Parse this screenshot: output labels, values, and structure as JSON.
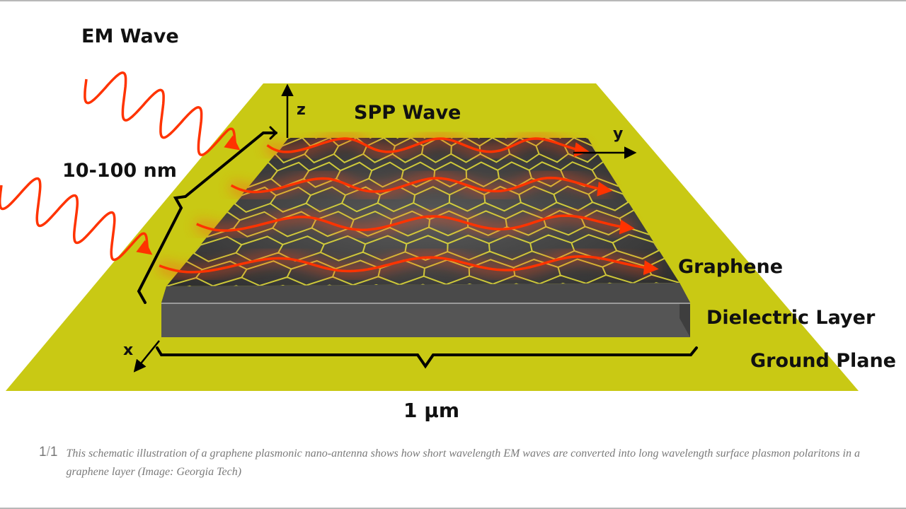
{
  "diagram": {
    "labels": {
      "em_wave": "EM Wave",
      "spp_wave": "SPP Wave",
      "thickness": "10-100 nm",
      "width": "1 µm",
      "graphene": "Graphene",
      "dielectric": "Dielectric Layer",
      "ground": "Ground Plane",
      "axis_x": "x",
      "axis_y": "y",
      "axis_z": "z"
    },
    "colors": {
      "ground_plane": "#c9c914",
      "dielectric": "#5a5a5a",
      "graphene_sheet": "#3a3a3a",
      "lattice_bonds": "#e8e23a",
      "wave": "#ff3300"
    }
  },
  "caption": {
    "index": "1",
    "total": "1",
    "text": "This schematic illustration of a graphene plasmonic nano-antenna shows how short wavelength EM waves are converted into long wavelength surface plasmon polaritons in a graphene layer (Image: Georgia Tech)"
  }
}
